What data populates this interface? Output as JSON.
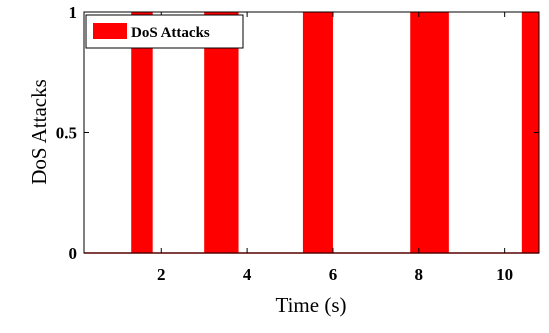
{
  "chart_data": {
    "type": "bar",
    "xlabel": "Time (s)",
    "ylabel": "DoS Attacks",
    "xlim": [
      0.2,
      10.8
    ],
    "ylim": [
      0,
      1
    ],
    "xticks": [
      2,
      4,
      6,
      8,
      10
    ],
    "xtick_labels": [
      "2",
      "4",
      "6",
      "8",
      "10"
    ],
    "yticks": [
      0,
      0.5,
      1
    ],
    "ytick_labels": [
      "0",
      "0.5",
      "1"
    ],
    "grid": false,
    "legend_position": "top-left",
    "series": [
      {
        "name": "DoS Attacks",
        "color": "#ff0000",
        "intervals": [
          {
            "start": 1.3,
            "end": 1.8,
            "value": 1
          },
          {
            "start": 3.0,
            "end": 3.8,
            "value": 1
          },
          {
            "start": 5.3,
            "end": 6.0,
            "value": 1
          },
          {
            "start": 7.8,
            "end": 8.7,
            "value": 1
          },
          {
            "start": 10.4,
            "end": 10.8,
            "value": 1
          }
        ]
      }
    ]
  }
}
